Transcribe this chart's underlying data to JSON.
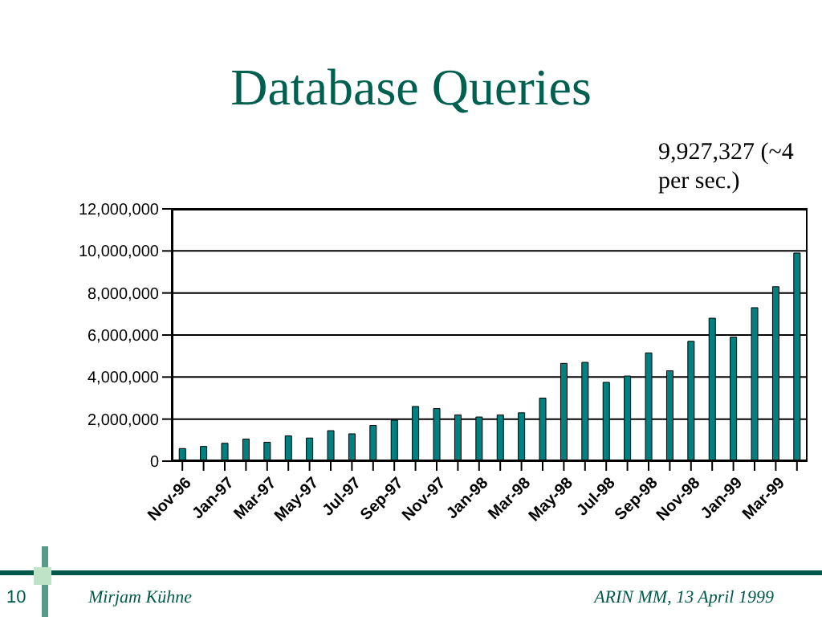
{
  "chart_data": {
    "type": "bar",
    "title": "Database Queries",
    "categories": [
      "Nov-96",
      null,
      "Jan-97",
      null,
      "Mar-97",
      null,
      "May-97",
      null,
      "Jul-97",
      null,
      "Sep-97",
      null,
      "Nov-97",
      null,
      "Jan-98",
      null,
      "Mar-98",
      null,
      "May-98",
      null,
      "Jul-98",
      null,
      "Sep-98",
      null,
      "Nov-98",
      null,
      "Jan-99",
      null,
      "Mar-99",
      null
    ],
    "values": [
      600000,
      700000,
      850000,
      1050000,
      900000,
      1200000,
      1100000,
      1450000,
      1300000,
      1700000,
      1950000,
      2600000,
      2500000,
      2200000,
      2100000,
      2200000,
      2300000,
      3000000,
      4650000,
      4700000,
      3750000,
      4050000,
      5150000,
      4300000,
      5700000,
      6800000,
      5900000,
      7300000,
      8300000,
      9900000
    ],
    "color": "#008080",
    "ylim": [
      0,
      12000000
    ],
    "yticks": [
      0,
      {
        "value": 2000000,
        "label": "2,000,000"
      },
      {
        "value": 4000000,
        "label": "4,000,000"
      },
      {
        "value": 6000000,
        "label": "6,000,000"
      },
      {
        "value": 8000000,
        "label": "8,000,000"
      },
      {
        "value": 10000000,
        "label": "10,000,000"
      },
      {
        "value": 12000000,
        "label": "12,000,000"
      }
    ],
    "grid": "y",
    "legend": false,
    "annotations": [
      "9,927,327 (~4 per sec.)",
      "10",
      "Mirjam Kühne",
      "ARIN MM, 13 April 1999"
    ]
  }
}
